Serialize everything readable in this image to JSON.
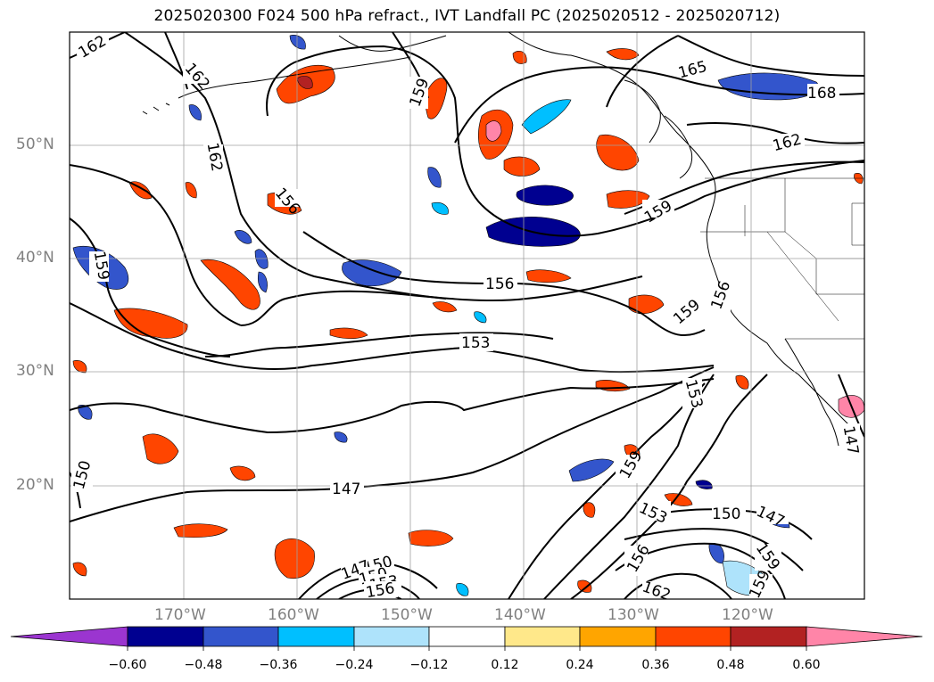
{
  "title": "2025020300 F024 500 hPa refract., IVT Landfall PC (2025020512 - 2025020712)",
  "lat_labels": [
    "50°N",
    "40°N",
    "30°N",
    "20°N"
  ],
  "lon_labels": [
    "170°W",
    "160°W",
    "150°W",
    "140°W",
    "130°W",
    "120°W"
  ],
  "colorbar": {
    "tick_labels": [
      "−0.60",
      "−0.48",
      "−0.36",
      "−0.24",
      "−0.12",
      "0.12",
      "0.24",
      "0.36",
      "0.48",
      "0.60"
    ],
    "colors": [
      "#9b35d0",
      "#000090",
      "#3355cc",
      "#00bfff",
      "#aee3fb",
      "#ffffff",
      "#ffe88a",
      "#ffa500",
      "#ff4500",
      "#b22222",
      "#ff85a8"
    ]
  },
  "contour_labels": [
    "162",
    "162",
    "162",
    "165",
    "168",
    "162",
    "159",
    "159",
    "159",
    "156",
    "156",
    "159",
    "159",
    "156",
    "153",
    "153",
    "150",
    "150",
    "147",
    "147",
    "153",
    "150",
    "147",
    "156",
    "162",
    "159",
    "159",
    "147",
    "150",
    "153",
    "156"
  ],
  "colors": {
    "contour": "#000000",
    "grid": "#a0a0a0",
    "coast": "#000000"
  }
}
